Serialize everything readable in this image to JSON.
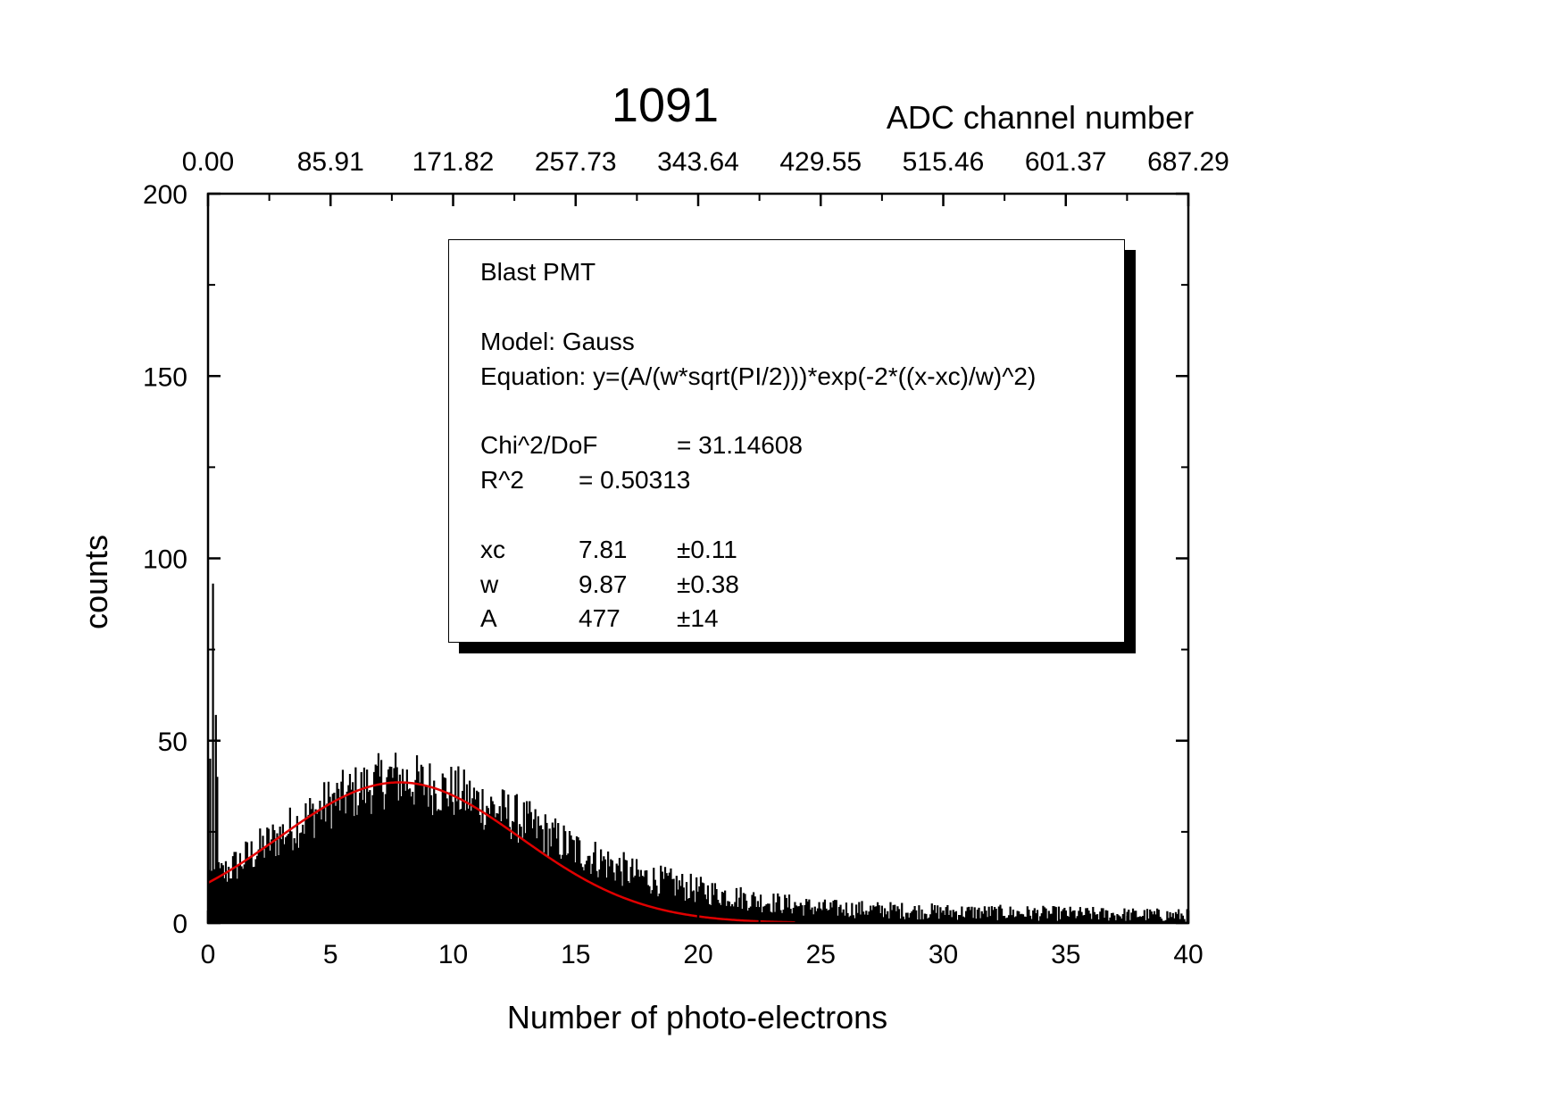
{
  "chart_data": {
    "type": "bar",
    "title": "1091",
    "title_color": "#e00000",
    "xlabel": "Number of photo-electrons",
    "ylabel": "counts",
    "top_axis_label": "ADC channel number",
    "xlim": [
      0,
      40
    ],
    "ylim": [
      0,
      200
    ],
    "x_ticks": [
      "0",
      "5",
      "10",
      "15",
      "20",
      "25",
      "30",
      "35",
      "40"
    ],
    "y_ticks": [
      "0",
      "50",
      "100",
      "150",
      "200"
    ],
    "top_ticks": [
      "0.00",
      "85.91",
      "171.82",
      "257.73",
      "343.64",
      "429.55",
      "515.46",
      "601.37",
      "687.29"
    ],
    "grid": false,
    "histogram": {
      "bin_width": 0.0582,
      "bar_color": "#000000",
      "spike_values": [
        {
          "x": 0.1,
          "y": 45
        },
        {
          "x": 0.2,
          "y": 93
        },
        {
          "x": 0.3,
          "y": 57
        },
        {
          "x": 0.4,
          "y": 40
        }
      ],
      "description_points": [
        {
          "x": 0.5,
          "y": 13
        },
        {
          "x": 2.5,
          "y": 22
        },
        {
          "x": 5,
          "y": 33
        },
        {
          "x": 7.5,
          "y": 40
        },
        {
          "x": 10,
          "y": 36
        },
        {
          "x": 12.5,
          "y": 29
        },
        {
          "x": 15,
          "y": 20
        },
        {
          "x": 17.5,
          "y": 13
        },
        {
          "x": 20,
          "y": 9
        },
        {
          "x": 22.5,
          "y": 6
        },
        {
          "x": 25,
          "y": 4
        },
        {
          "x": 30,
          "y": 3
        },
        {
          "x": 35,
          "y": 2.5
        },
        {
          "x": 40,
          "y": 2
        }
      ]
    },
    "fit": {
      "color": "#e00000",
      "model": "Gauss",
      "xc": 7.81,
      "w": 9.87,
      "A": 477,
      "x_range": [
        0,
        24
      ]
    },
    "legend": {
      "placement": "top-right",
      "title": "Blast PMT",
      "model_line": "Model: Gauss",
      "equation_line": "Equation: y=(A/(w*sqrt(PI/2)))*exp(-2*((x-xc)/w)^2)",
      "chi_label": "Chi^2/DoF",
      "chi_value": "= 31.14608",
      "r2_label": "R^2",
      "r2_value": "=  0.50313",
      "params": [
        {
          "name": "xc",
          "value": "7.81",
          "error": "±0.11"
        },
        {
          "name": "w",
          "value": "9.87",
          "error": "±0.38"
        },
        {
          "name": "A",
          "value": "477",
          "error": "±14"
        }
      ]
    }
  }
}
